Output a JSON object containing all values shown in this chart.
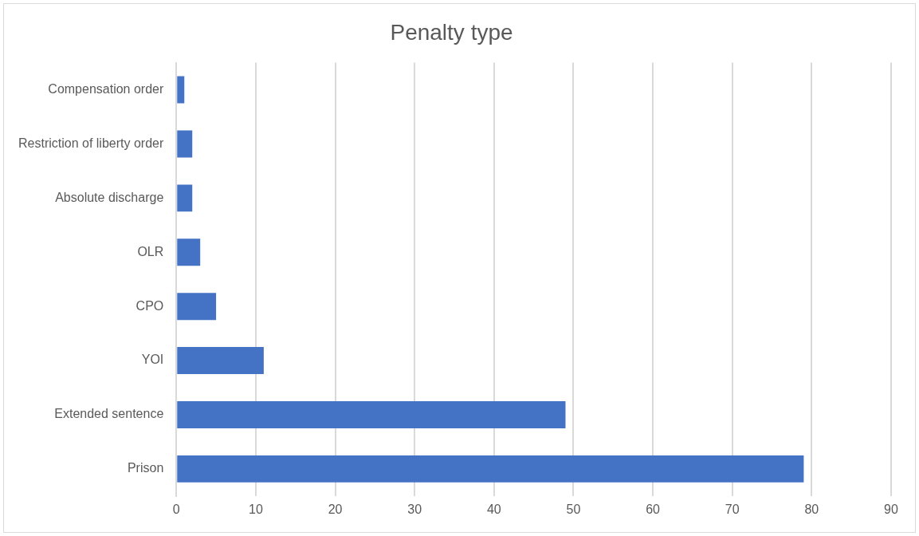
{
  "chart_data": {
    "type": "bar",
    "orientation": "horizontal",
    "title": "Penalty type",
    "categories": [
      "Compensation order",
      "Restriction of liberty order",
      "Absolute discharge",
      "OLR",
      "CPO",
      "YOI",
      "Extended sentence",
      "Prison"
    ],
    "values": [
      1,
      2,
      2,
      3,
      5,
      11,
      49,
      79
    ],
    "color": "#4472c4",
    "xlim": [
      0,
      90
    ],
    "xticks": [
      0,
      10,
      20,
      30,
      40,
      50,
      60,
      70,
      80,
      90
    ],
    "grid": "x",
    "legend": false
  }
}
